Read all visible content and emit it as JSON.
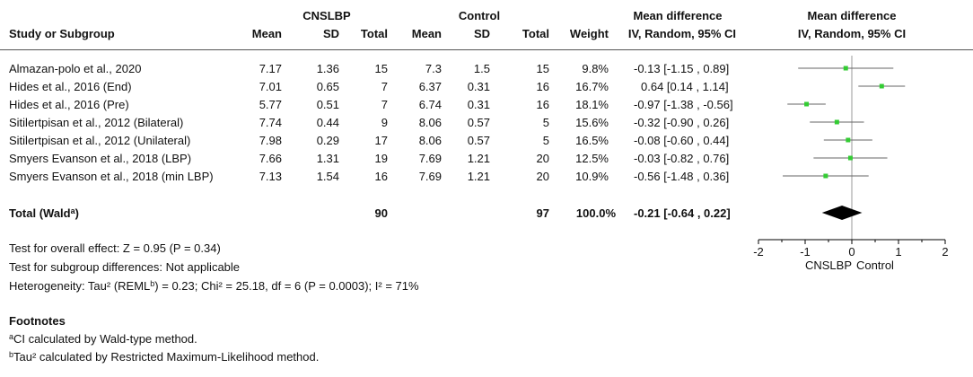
{
  "headers": {
    "group1": "CNSLBP",
    "group2": "Control",
    "md_title": "Mean difference",
    "plot_title": "Mean difference",
    "study": "Study or Subgroup",
    "mean1": "Mean",
    "sd1": "SD",
    "total1": "Total",
    "mean2": "Mean",
    "sd2": "SD",
    "total2": "Total",
    "weight": "Weight",
    "md_method": "IV, Random, 95% CI",
    "plot_method": "IV, Random, 95% CI"
  },
  "studies": [
    {
      "name": "Almazan-polo et al., 2020",
      "mean1": "7.17",
      "sd1": "1.36",
      "total1": "15",
      "mean2": "7.3",
      "sd2": "1.5",
      "total2": "15",
      "weight": "9.8%",
      "ci": "-0.13 [-1.15 , 0.89]"
    },
    {
      "name": "Hides et al., 2016 (End)",
      "mean1": "7.01",
      "sd1": "0.65",
      "total1": "7",
      "mean2": "6.37",
      "sd2": "0.31",
      "total2": "16",
      "weight": "16.7%",
      "ci": "0.64 [0.14 , 1.14]"
    },
    {
      "name": "Hides et al., 2016 (Pre)",
      "mean1": "5.77",
      "sd1": "0.51",
      "total1": "7",
      "mean2": "6.74",
      "sd2": "0.31",
      "total2": "16",
      "weight": "18.1%",
      "ci": "-0.97 [-1.38 , -0.56]"
    },
    {
      "name": "Sitilertpisan et al., 2012 (Bilateral)",
      "mean1": "7.74",
      "sd1": "0.44",
      "total1": "9",
      "mean2": "8.06",
      "sd2": "0.57",
      "total2": "5",
      "weight": "15.6%",
      "ci": "-0.32 [-0.90 , 0.26]"
    },
    {
      "name": "Sitilertpisan et al., 2012 (Unilateral)",
      "mean1": "7.98",
      "sd1": "0.29",
      "total1": "17",
      "mean2": "8.06",
      "sd2": "0.57",
      "total2": "5",
      "weight": "16.5%",
      "ci": "-0.08 [-0.60 , 0.44]"
    },
    {
      "name": "Smyers Evanson et al., 2018 (LBP)",
      "mean1": "7.66",
      "sd1": "1.31",
      "total1": "19",
      "mean2": "7.69",
      "sd2": "1.21",
      "total2": "20",
      "weight": "12.5%",
      "ci": "-0.03 [-0.82 , 0.76]"
    },
    {
      "name": "Smyers Evanson et al., 2018 (min LBP)",
      "mean1": "7.13",
      "sd1": "1.54",
      "total1": "16",
      "mean2": "7.69",
      "sd2": "1.21",
      "total2": "20",
      "weight": "10.9%",
      "ci": "-0.56 [-1.48 , 0.36]"
    }
  ],
  "total": {
    "label": "Total (Wald",
    "label_sup": "a",
    "label_close": ")",
    "total1": "90",
    "total2": "97",
    "weight": "100.0%",
    "ci": "-0.21 [-0.64 , 0.22]"
  },
  "tests": {
    "overall": "Test for overall effect: Z = 0.95 (P = 0.34)",
    "subgroup": "Test for subgroup differences: Not applicable",
    "het_pre": "Heterogeneity: Tau² (REML",
    "het_sup": "b",
    "het_post": ") = 0.23; Chi² = 25.18, df = 6 (P = 0.0003); I² = 71%"
  },
  "footnotes": {
    "title": "Footnotes",
    "a_mark": "a",
    "a_text": "CI calculated by Wald-type method.",
    "b_mark": "b",
    "b_text": "Tau² calculated by Restricted Maximum-Likelihood method."
  },
  "chart_data": {
    "type": "forest",
    "xlim": [
      -2,
      2
    ],
    "x_ticks": [
      "-2",
      "-1",
      "0",
      "1",
      "2"
    ],
    "x_tick_values": [
      -2,
      -1,
      0,
      1,
      2
    ],
    "favours_left": "CNSLBP",
    "favours_right": "Control",
    "point_color": "#33cc33",
    "diamond_color": "#000000",
    "studies": [
      {
        "estimate": -0.13,
        "lower": -1.15,
        "upper": 0.89
      },
      {
        "estimate": 0.64,
        "lower": 0.14,
        "upper": 1.14
      },
      {
        "estimate": -0.97,
        "lower": -1.38,
        "upper": -0.56
      },
      {
        "estimate": -0.32,
        "lower": -0.9,
        "upper": 0.26
      },
      {
        "estimate": -0.08,
        "lower": -0.6,
        "upper": 0.44
      },
      {
        "estimate": -0.03,
        "lower": -0.82,
        "upper": 0.76
      },
      {
        "estimate": -0.56,
        "lower": -1.48,
        "upper": 0.36
      }
    ],
    "pooled": {
      "estimate": -0.21,
      "lower": -0.64,
      "upper": 0.22
    }
  }
}
